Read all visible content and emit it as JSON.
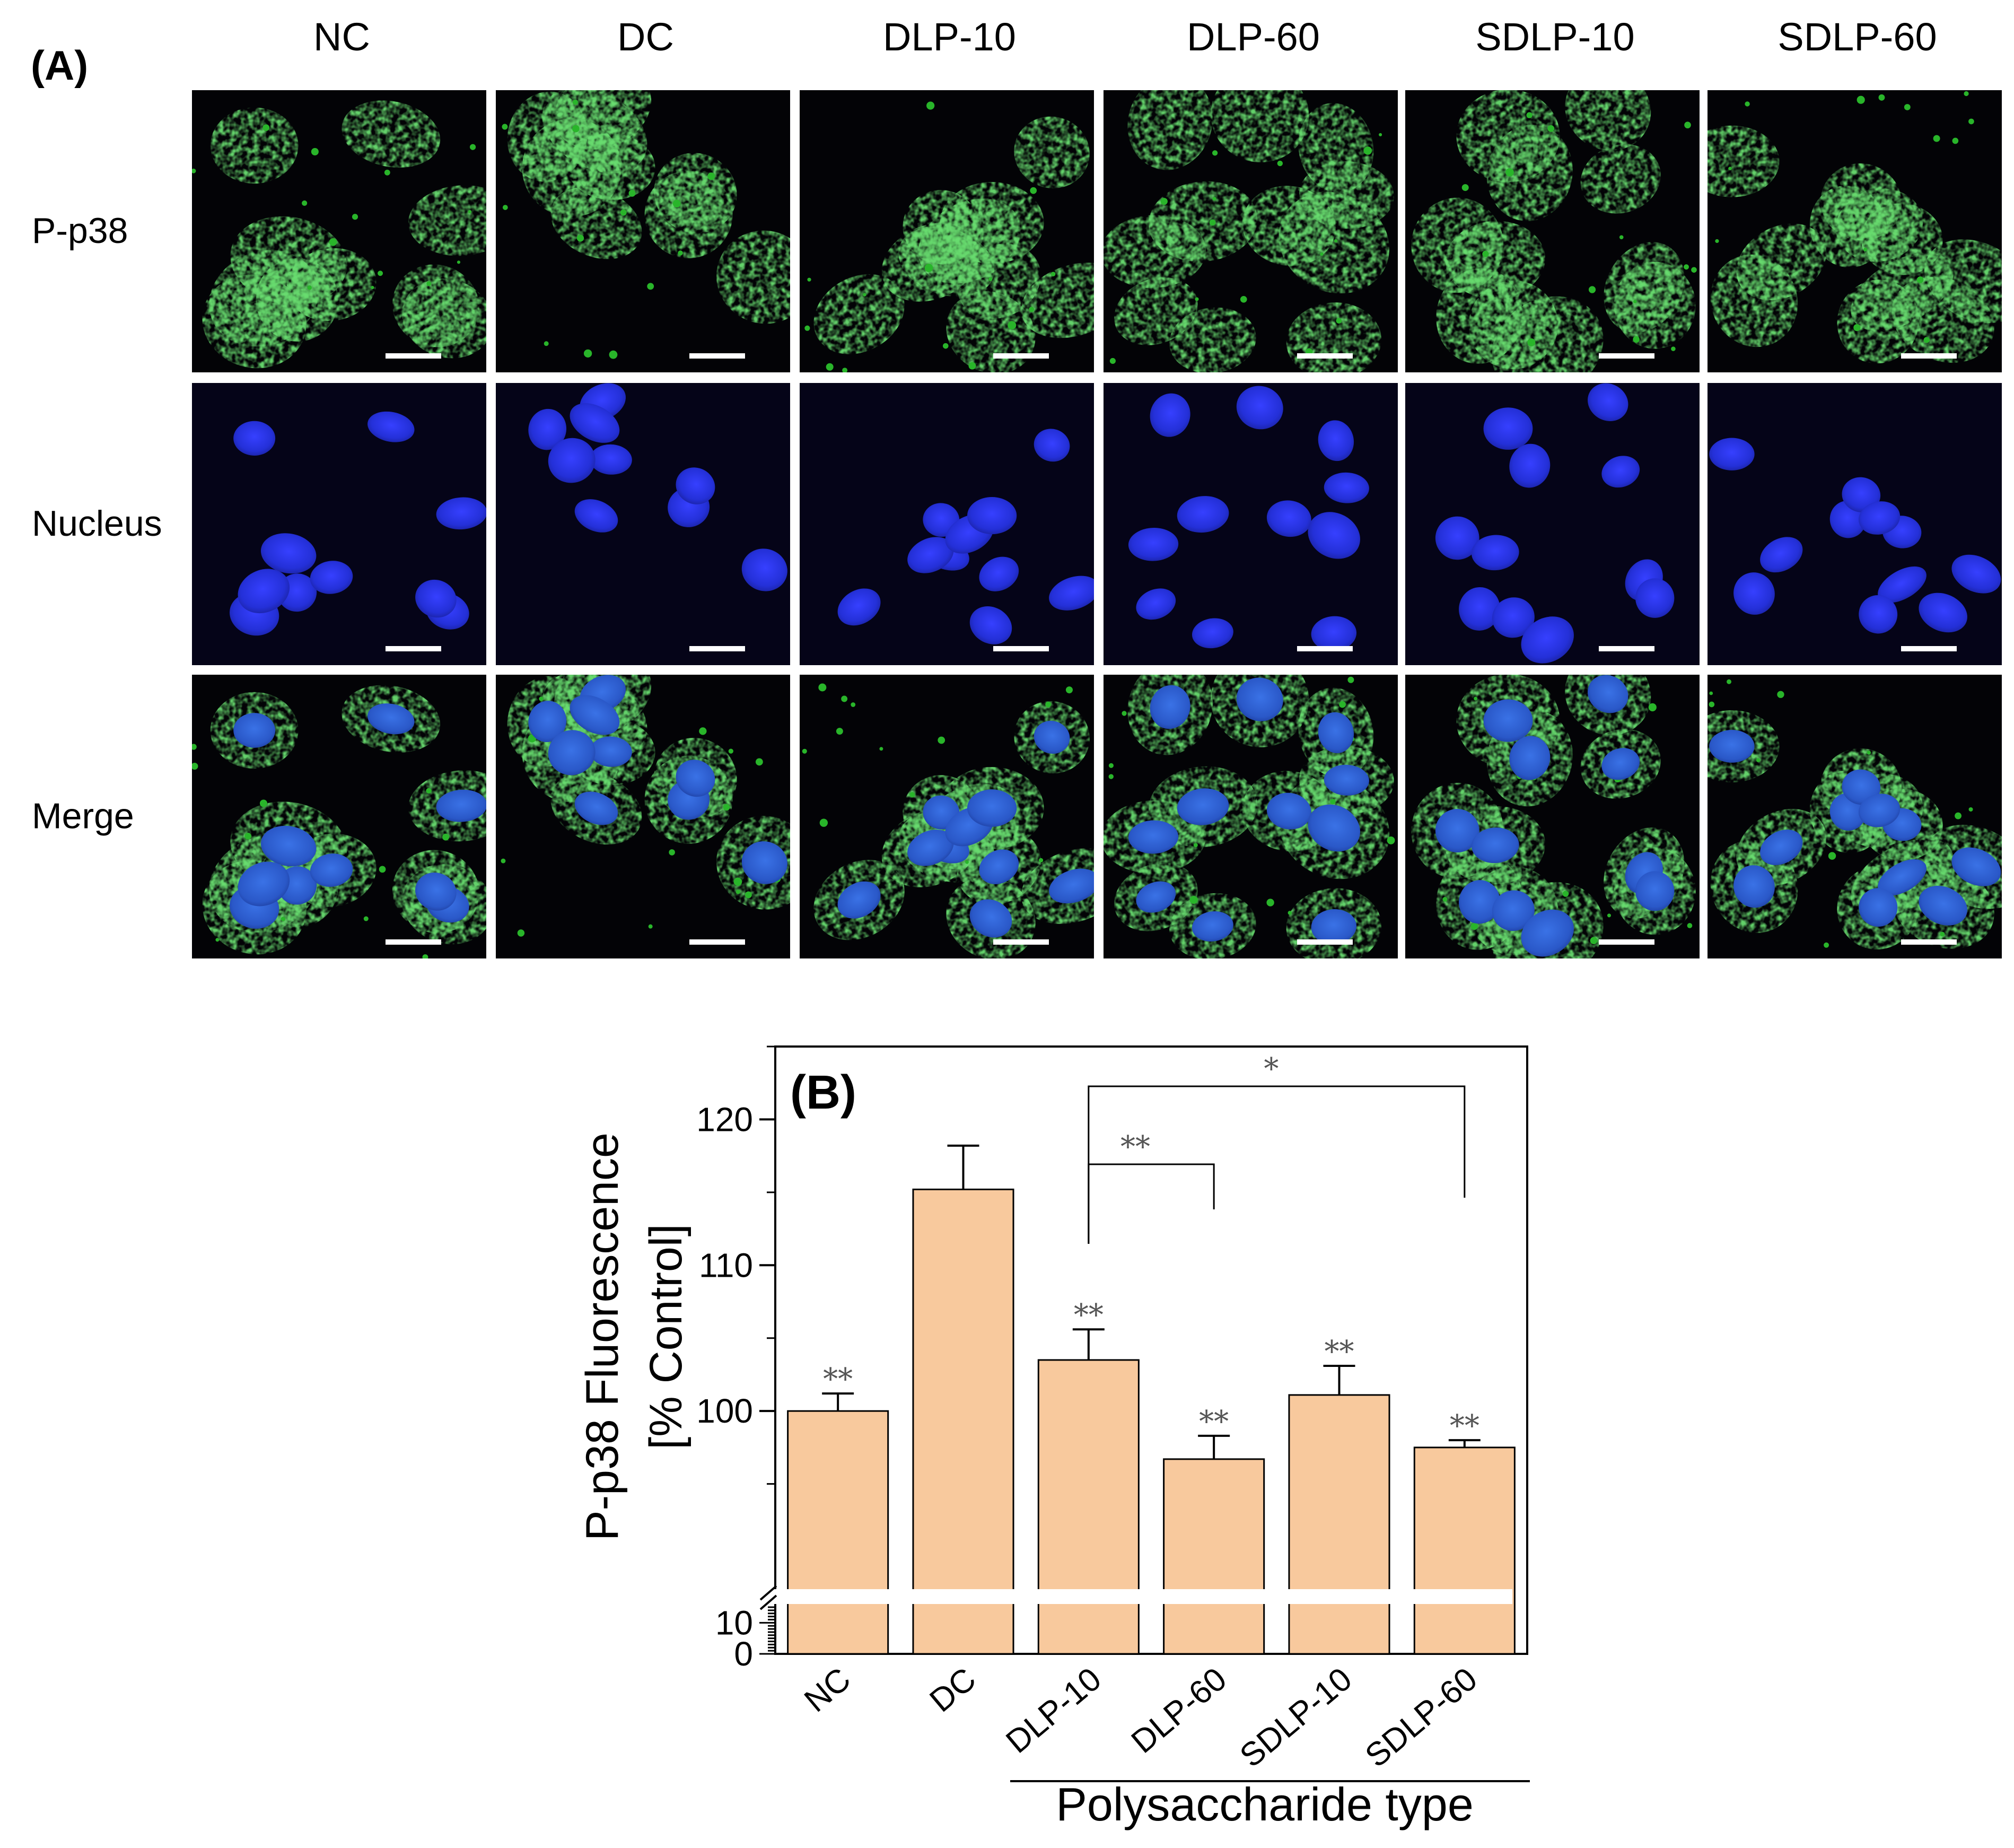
{
  "panel_a": {
    "label": "(A)",
    "columns": [
      "NC",
      "DC",
      "DLP-10",
      "DLP-60",
      "SDLP-10",
      "SDLP-60"
    ],
    "rows": [
      "P-p38",
      "Nucleus",
      "Merge"
    ],
    "colors": {
      "p38_stain": "#29b52a",
      "nucleus_stain": "#2730d8",
      "background": "#030306",
      "scale_bar": "#ffffff"
    }
  },
  "chart_data": {
    "type": "bar",
    "panel_label": "(B)",
    "categories": [
      "NC",
      "DC",
      "DLP-10",
      "DLP-60",
      "SDLP-10",
      "SDLP-60"
    ],
    "values": [
      100.0,
      115.2,
      103.5,
      96.7,
      101.1,
      97.5
    ],
    "errors": [
      1.2,
      3.0,
      2.1,
      1.6,
      2.0,
      0.5
    ],
    "significance": [
      "**",
      "",
      "**",
      "**",
      "**",
      "**"
    ],
    "comparisons": [
      {
        "from": "DLP-10",
        "to": "DLP-60",
        "label": "**"
      },
      {
        "from": "DLP-10",
        "to": "SDLP-60",
        "label": "*"
      }
    ],
    "ylabel_line1": "P-p38 Fluorescence",
    "ylabel_line2": "[% Control]",
    "xlabel": "Polysaccharide type",
    "upper_ticks": [
      "100",
      "110",
      "120"
    ],
    "lower_ticks": [
      "10",
      "0"
    ],
    "ylim_upper": [
      88,
      125
    ],
    "ylim_lower": [
      0,
      15
    ],
    "axis_break": true,
    "bar_color": "#f8c99d",
    "bar_edge": "#000000"
  }
}
